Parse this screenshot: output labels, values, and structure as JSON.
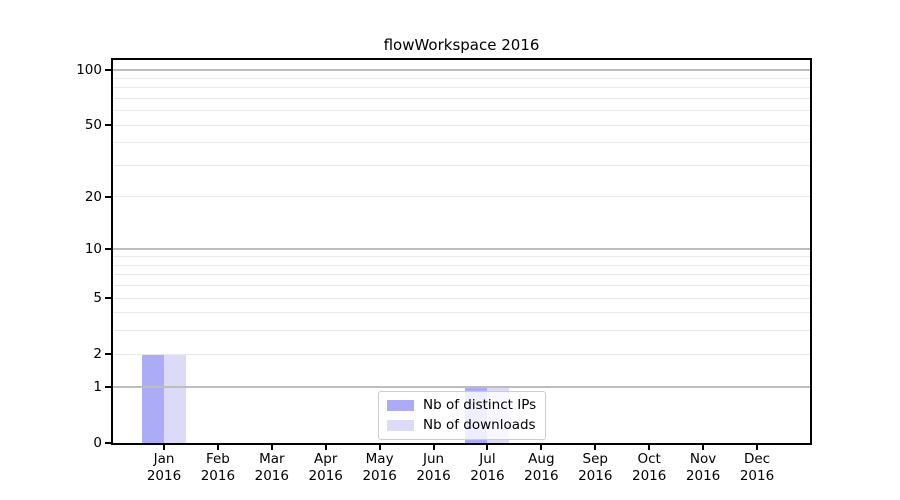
{
  "chart_data": {
    "type": "bar",
    "title": "flowWorkspace 2016",
    "xlabel": "",
    "ylabel": "",
    "categories": [
      "Jan",
      "Feb",
      "Mar",
      "Apr",
      "May",
      "Jun",
      "Jul",
      "Aug",
      "Sep",
      "Oct",
      "Nov",
      "Dec"
    ],
    "year_label": "2016",
    "series": [
      {
        "name": "Nb of distinct IPs",
        "color": "#ababf6",
        "values": [
          2,
          0,
          0,
          0,
          0,
          0,
          1,
          0,
          0,
          0,
          0,
          0
        ]
      },
      {
        "name": "Nb of downloads",
        "color": "#dbdbf8",
        "values": [
          2,
          0,
          0,
          0,
          0,
          0,
          1,
          0,
          0,
          0,
          0,
          0
        ]
      }
    ],
    "yscale": "log1p",
    "ylim": [
      0,
      113
    ],
    "ytick_values": [
      0,
      1,
      2,
      5,
      10,
      20,
      50,
      100
    ],
    "ytick_labels": [
      "0",
      "1",
      "2",
      "5",
      "10",
      "20",
      "50",
      "100"
    ],
    "major_grid_values": [
      1,
      10,
      100
    ],
    "minor_grid_values": [
      2,
      3,
      4,
      5,
      6,
      7,
      8,
      9,
      20,
      30,
      40,
      50,
      60,
      70,
      80,
      90
    ],
    "grid": true,
    "legend_position": "lower center"
  },
  "colors": {
    "bar_distinct_ips": "#ababf6",
    "bar_downloads": "#dbdbf8",
    "major_grid": "#bdbdbd",
    "minor_grid": "#e9e9e9",
    "axis": "#000000",
    "legend_border": "#cccccc",
    "background": "#ffffff"
  }
}
